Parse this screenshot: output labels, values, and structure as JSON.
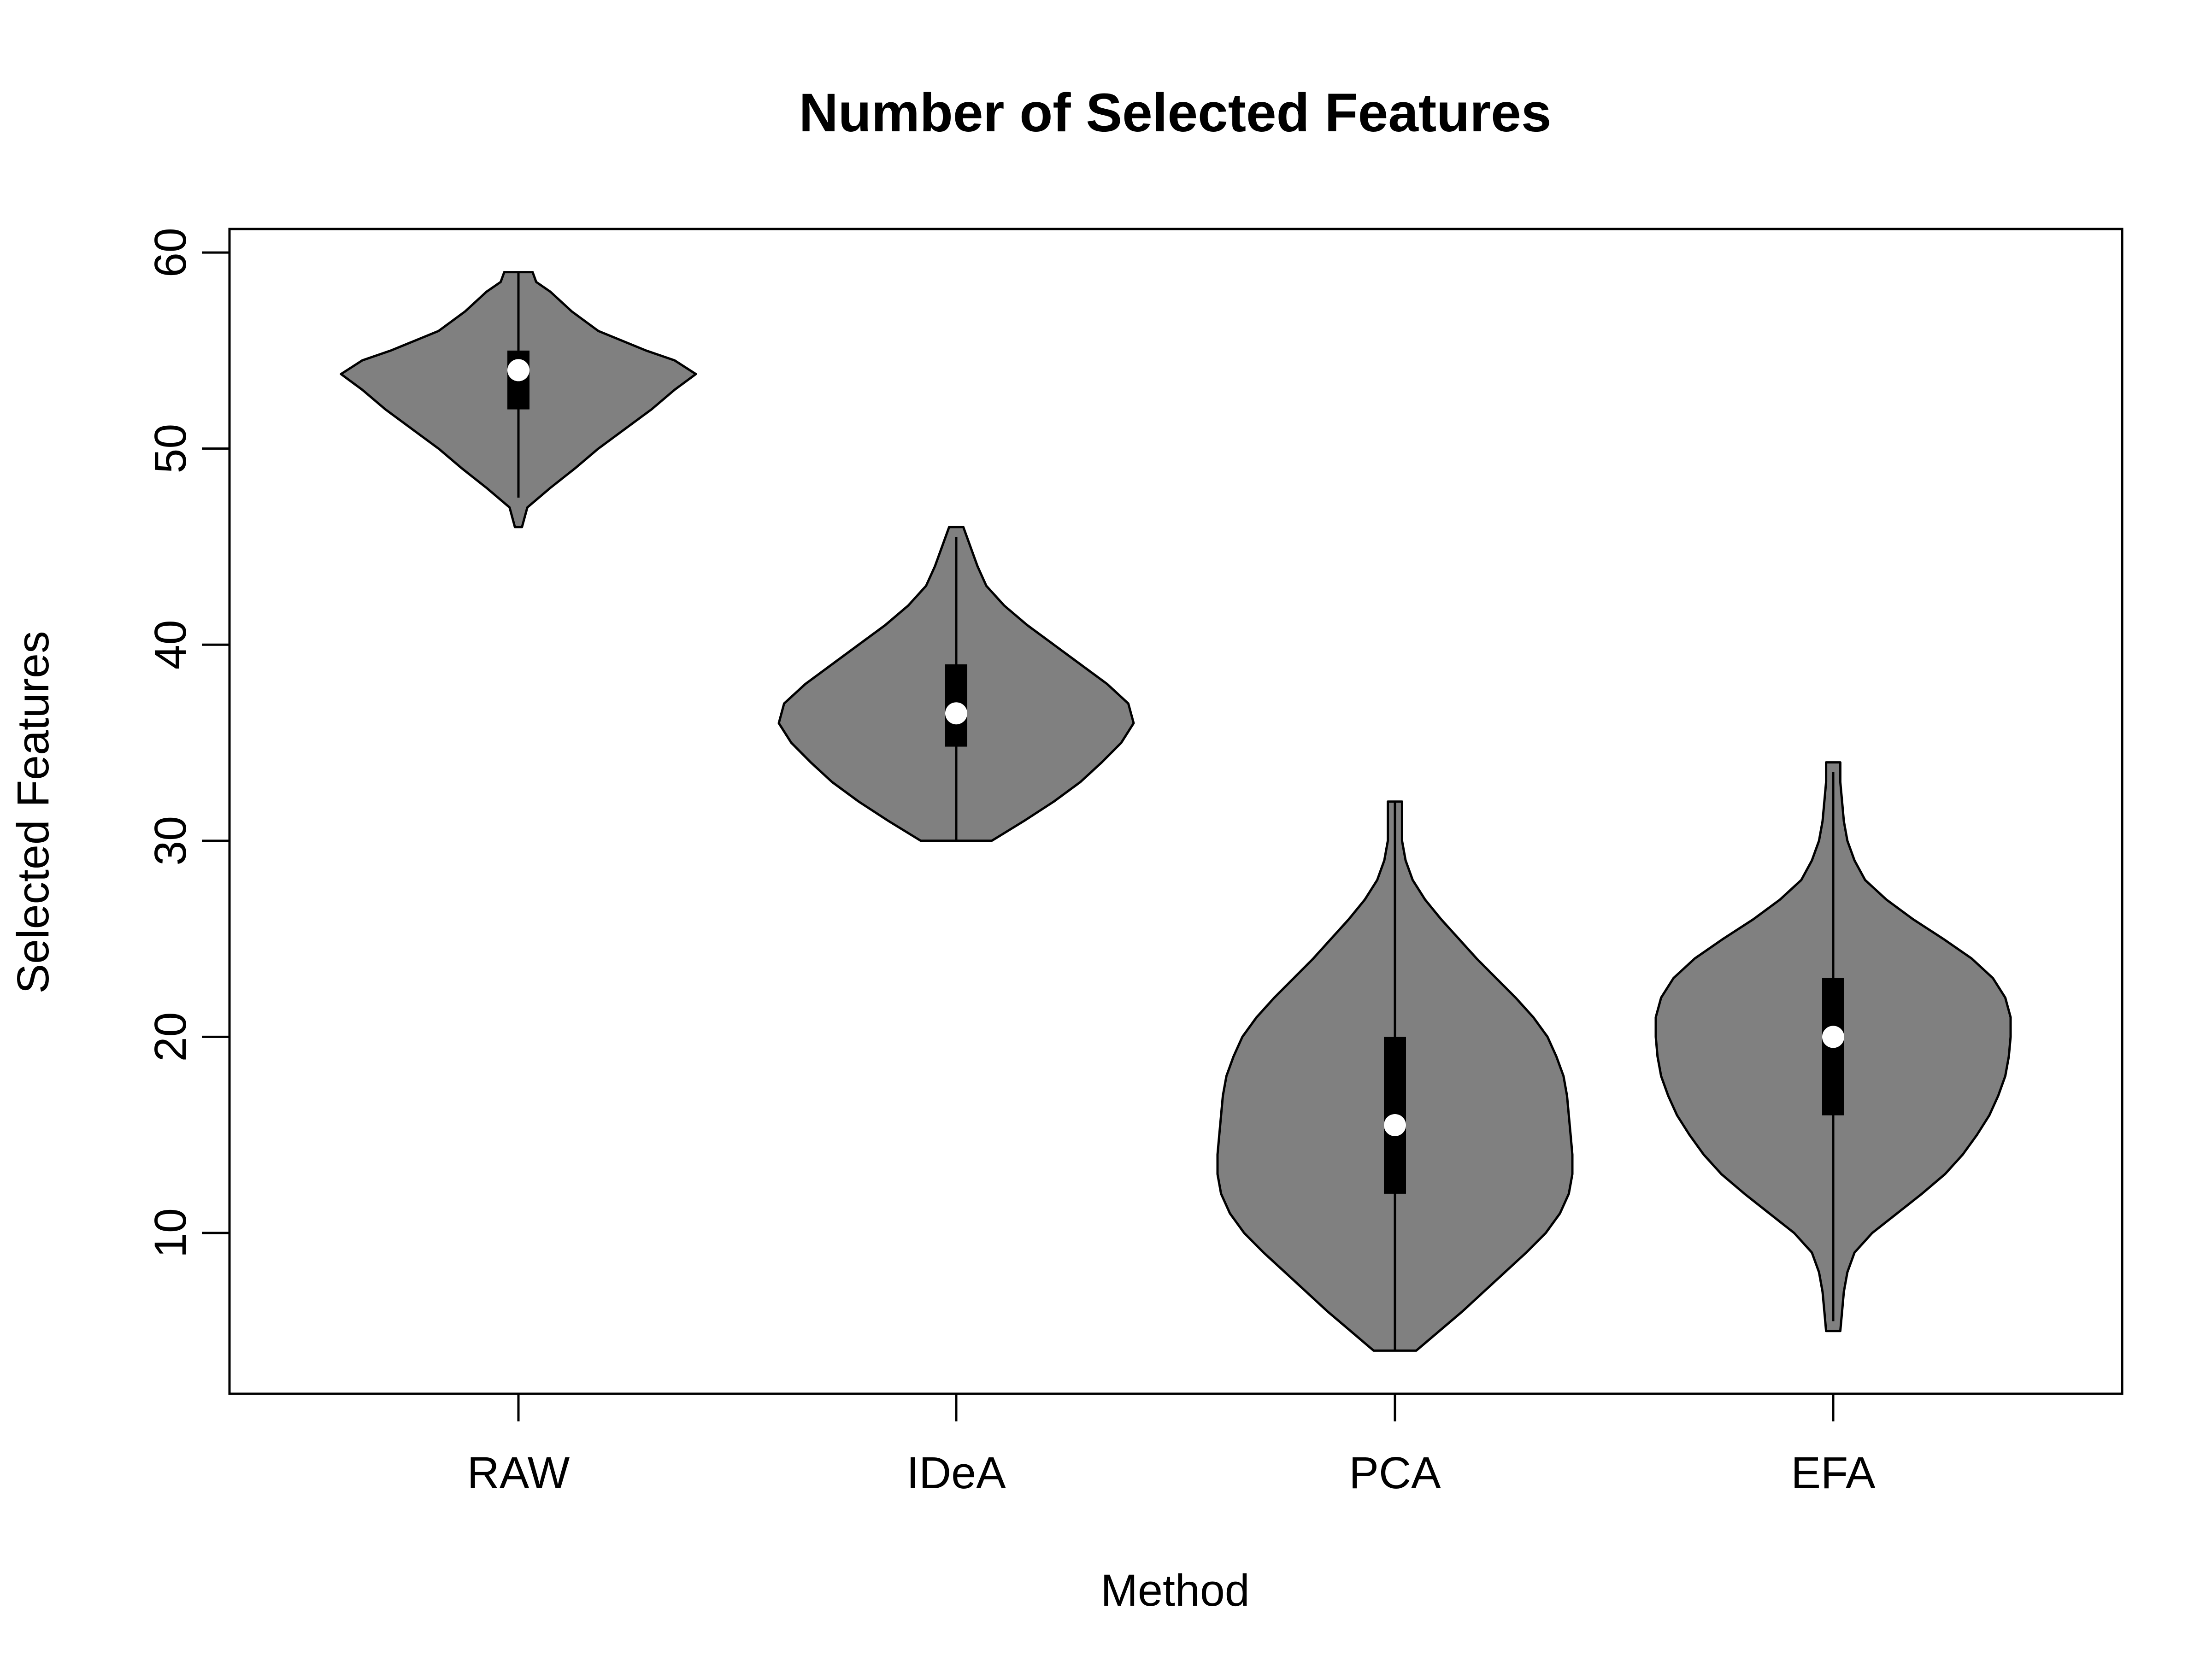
{
  "chart_data": {
    "type": "violin",
    "title": "Number of Selected Features",
    "xlabel": "Method",
    "ylabel": "Selected Features",
    "categories": [
      "RAW",
      "IDeA",
      "PCA",
      "EFA"
    ],
    "yticks": [
      "10",
      "20",
      "30",
      "40",
      "50",
      "60"
    ],
    "ylim": [
      1.8,
      61.2
    ],
    "grid": false,
    "legend": "none",
    "colors": {
      "violin_fill": "#808080",
      "violin_stroke": "#000000",
      "box": "#000000",
      "median": "#ffffff"
    },
    "series": [
      {
        "category": "RAW",
        "min": 46,
        "max": 59,
        "q1": 52,
        "median": 54,
        "q3": 55,
        "whisker_low": 47.5,
        "whisker_high": 59,
        "density": [
          [
            46,
            0.02
          ],
          [
            47,
            0.05
          ],
          [
            48,
            0.18
          ],
          [
            49,
            0.32
          ],
          [
            50,
            0.45
          ],
          [
            51,
            0.6
          ],
          [
            52,
            0.75
          ],
          [
            53,
            0.88
          ],
          [
            53.8,
            1.0
          ],
          [
            54.5,
            0.88
          ],
          [
            55,
            0.72
          ],
          [
            56,
            0.45
          ],
          [
            57,
            0.3
          ],
          [
            58,
            0.18
          ],
          [
            58.5,
            0.1
          ],
          [
            59,
            0.08
          ]
        ]
      },
      {
        "category": "IDeA",
        "min": 30,
        "max": 46,
        "q1": 34.8,
        "median": 36.5,
        "q3": 39,
        "whisker_low": 30,
        "whisker_high": 45.5,
        "density": [
          [
            30,
            0.2
          ],
          [
            31,
            0.38
          ],
          [
            32,
            0.55
          ],
          [
            33,
            0.7
          ],
          [
            34,
            0.82
          ],
          [
            35,
            0.93
          ],
          [
            36,
            1.0
          ],
          [
            37,
            0.97
          ],
          [
            38,
            0.85
          ],
          [
            39,
            0.7
          ],
          [
            40,
            0.55
          ],
          [
            41,
            0.4
          ],
          [
            42,
            0.27
          ],
          [
            43,
            0.17
          ],
          [
            44,
            0.12
          ],
          [
            45,
            0.08
          ],
          [
            46,
            0.04
          ]
        ]
      },
      {
        "category": "PCA",
        "min": 4,
        "max": 32,
        "q1": 12,
        "median": 15.5,
        "q3": 20,
        "whisker_low": 4,
        "whisker_high": 32,
        "density": [
          [
            4,
            0.12
          ],
          [
            5,
            0.25
          ],
          [
            6,
            0.38
          ],
          [
            7,
            0.5
          ],
          [
            8,
            0.62
          ],
          [
            9,
            0.74
          ],
          [
            10,
            0.85
          ],
          [
            11,
            0.93
          ],
          [
            12,
            0.98
          ],
          [
            13,
            1.0
          ],
          [
            14,
            1.0
          ],
          [
            15,
            0.99
          ],
          [
            16,
            0.98
          ],
          [
            17,
            0.97
          ],
          [
            18,
            0.95
          ],
          [
            19,
            0.91
          ],
          [
            20,
            0.86
          ],
          [
            21,
            0.78
          ],
          [
            22,
            0.68
          ],
          [
            23,
            0.57
          ],
          [
            24,
            0.46
          ],
          [
            25,
            0.36
          ],
          [
            26,
            0.26
          ],
          [
            27,
            0.17
          ],
          [
            28,
            0.1
          ],
          [
            29,
            0.06
          ],
          [
            30,
            0.04
          ],
          [
            31,
            0.04
          ],
          [
            32,
            0.04
          ]
        ]
      },
      {
        "category": "EFA",
        "min": 5,
        "max": 34,
        "q1": 16,
        "median": 20,
        "q3": 23,
        "whisker_low": 5.5,
        "whisker_high": 33.5,
        "density": [
          [
            5,
            0.04
          ],
          [
            6,
            0.05
          ],
          [
            7,
            0.06
          ],
          [
            8,
            0.08
          ],
          [
            9,
            0.12
          ],
          [
            10,
            0.22
          ],
          [
            11,
            0.36
          ],
          [
            12,
            0.5
          ],
          [
            13,
            0.63
          ],
          [
            14,
            0.73
          ],
          [
            15,
            0.81
          ],
          [
            16,
            0.88
          ],
          [
            17,
            0.93
          ],
          [
            18,
            0.97
          ],
          [
            19,
            0.99
          ],
          [
            20,
            1.0
          ],
          [
            21,
            1.0
          ],
          [
            22,
            0.97
          ],
          [
            23,
            0.9
          ],
          [
            24,
            0.78
          ],
          [
            25,
            0.62
          ],
          [
            26,
            0.45
          ],
          [
            27,
            0.3
          ],
          [
            28,
            0.18
          ],
          [
            29,
            0.12
          ],
          [
            30,
            0.08
          ],
          [
            31,
            0.06
          ],
          [
            32,
            0.05
          ],
          [
            33,
            0.04
          ],
          [
            34,
            0.04
          ]
        ]
      }
    ]
  }
}
